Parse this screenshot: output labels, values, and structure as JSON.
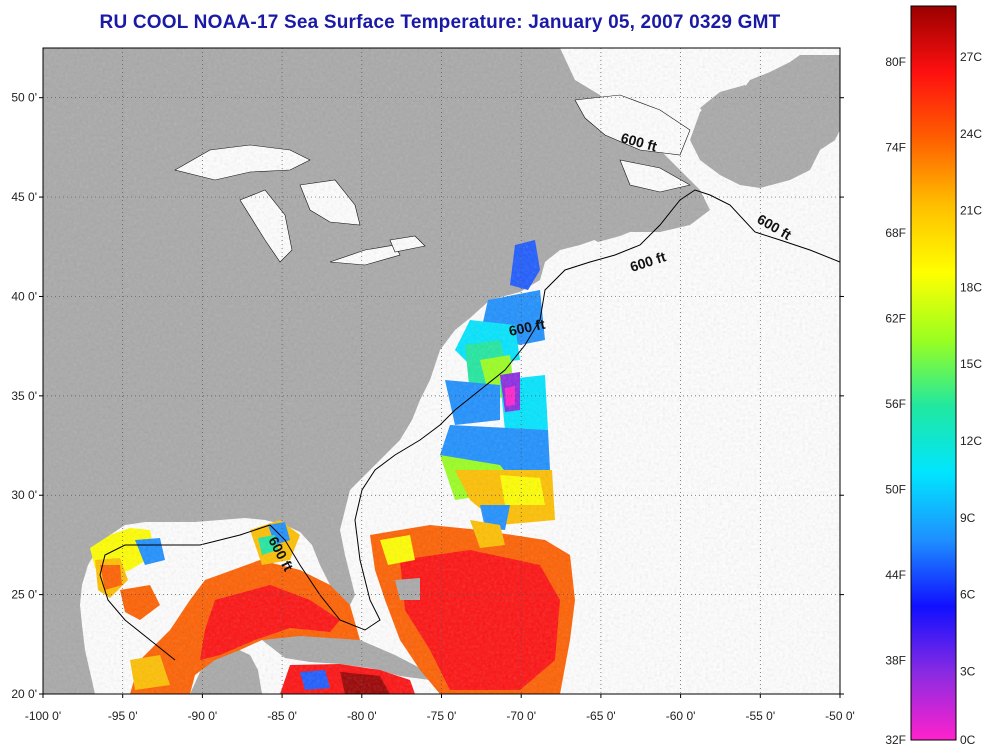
{
  "title": "RU COOL  NOAA-17  Sea Surface Temperature:  January 05, 2007 0329 GMT",
  "map": {
    "lon_range": [
      -100,
      -50
    ],
    "lat_range": [
      20,
      52.5
    ],
    "lon_ticks": [
      "-100 0'",
      "-95 0'",
      "-90 0'",
      "-85 0'",
      "-80 0'",
      "-75 0'",
      "-70 0'",
      "-65 0'",
      "-60 0'",
      "-55 0'",
      "-50 0'"
    ],
    "lat_ticks": [
      "20 0'",
      "25 0'",
      "30 0'",
      "35 0'",
      "40 0'",
      "45 0'",
      "50 0'"
    ],
    "land_color": "#a9a9a9",
    "ocean_nodata_color": "#ffffff",
    "isobath_label": "600 ft",
    "grid": true
  },
  "colorbar": {
    "fahrenheit_labels": [
      "80F",
      "74F",
      "68F",
      "62F",
      "56F",
      "50F",
      "44F",
      "38F",
      "32F"
    ],
    "celsius_labels": [
      "27C",
      "24C",
      "21C",
      "18C",
      "15C",
      "12C",
      "9C",
      "6C",
      "3C",
      "0C"
    ],
    "range_c": [
      0,
      28
    ],
    "colors": [
      "#ff22cc",
      "#8a2be2",
      "#1010ff",
      "#1e90ff",
      "#00e5ff",
      "#20e8a0",
      "#9aff20",
      "#ffff00",
      "#ffc000",
      "#ff6000",
      "#ff1010",
      "#9a0000"
    ]
  }
}
